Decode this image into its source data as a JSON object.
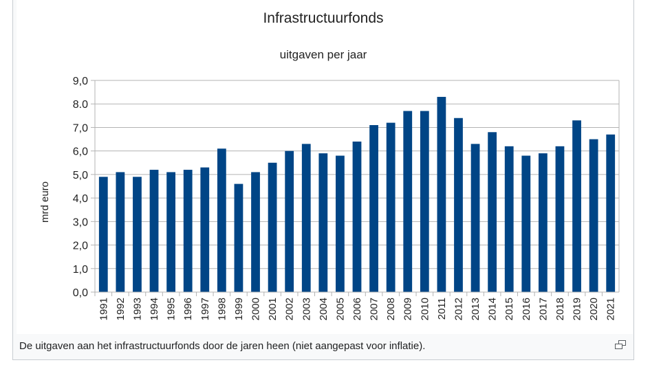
{
  "chart_data": {
    "type": "bar",
    "title": "Infrastructuurfonds",
    "subtitle": "uitgaven per jaar",
    "ylabel": "mrd euro",
    "xlabel": "",
    "ylim": [
      0,
      9
    ],
    "yticks": [
      "0,0",
      "1,0",
      "2,0",
      "3,0",
      "4,0",
      "5,0",
      "6,0",
      "7,0",
      "8.0",
      "9,0"
    ],
    "grid": true,
    "bar_color": "#004586",
    "categories": [
      "1991",
      "1992",
      "1993",
      "1994",
      "1995",
      "1996",
      "1997",
      "1998",
      "1999",
      "2000",
      "2001",
      "2002",
      "2003",
      "2004",
      "2005",
      "2006",
      "2007",
      "2008",
      "2009",
      "2010",
      "2011",
      "2012",
      "2013",
      "2014",
      "2015",
      "2016",
      "2017",
      "2018",
      "2019",
      "2020",
      "2021"
    ],
    "values": [
      4.9,
      5.1,
      4.9,
      5.2,
      5.1,
      5.2,
      5.3,
      6.1,
      4.6,
      5.1,
      5.5,
      6.0,
      6.3,
      5.9,
      5.8,
      6.4,
      7.1,
      7.2,
      7.7,
      7.7,
      8.3,
      7.4,
      6.3,
      6.8,
      6.2,
      5.8,
      5.9,
      6.2,
      7.3,
      6.5,
      6.7
    ]
  },
  "caption": "De uitgaven aan het infrastructuurfonds door de jaren heen (niet aangepast voor inflatie).",
  "icons": {
    "expand": "expand-icon"
  }
}
